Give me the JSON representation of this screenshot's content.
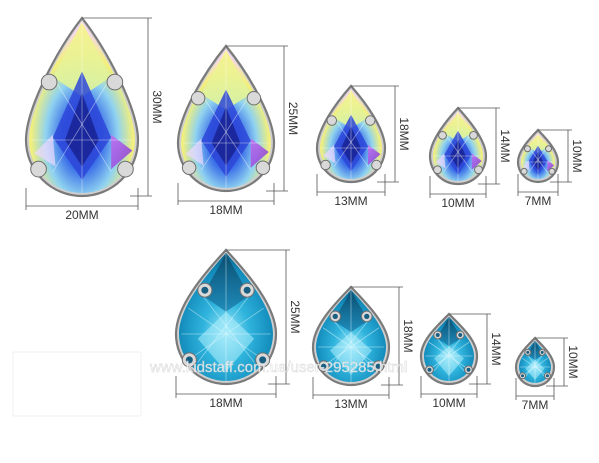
{
  "product": {
    "rows": [
      {
        "finish": "AB",
        "items": [
          {
            "width_label": "20MM",
            "height_label": "30MM"
          },
          {
            "width_label": "18MM",
            "height_label": "25MM"
          },
          {
            "width_label": "13MM",
            "height_label": "18MM"
          },
          {
            "width_label": "10MM",
            "height_label": "14MM"
          },
          {
            "width_label": "7MM",
            "height_label": "10MM"
          }
        ]
      },
      {
        "finish": "Aquamarine",
        "items": [
          {
            "width_label": "18MM",
            "height_label": "25MM"
          },
          {
            "width_label": "13MM",
            "height_label": "18MM"
          },
          {
            "width_label": "10MM",
            "height_label": "14MM"
          },
          {
            "width_label": "7MM",
            "height_label": "10MM"
          }
        ]
      }
    ],
    "watermark": "www.kidstaff.com.ua/user-295285.html"
  },
  "colors": {
    "background": "#ffffff",
    "aquamarine_dark": "#0b5f86",
    "aquamarine_mid": "#1fa3cf",
    "aquamarine_light": "#7fdcf5",
    "ab_blue": "#2a3fd6",
    "ab_yellow": "#f3f07a",
    "ab_violet": "#b04fe0",
    "prong_metal": "#d9d9d9"
  },
  "icons": {
    "stone": "teardrop-gem-icon",
    "prong": "claw-setting-icon"
  }
}
